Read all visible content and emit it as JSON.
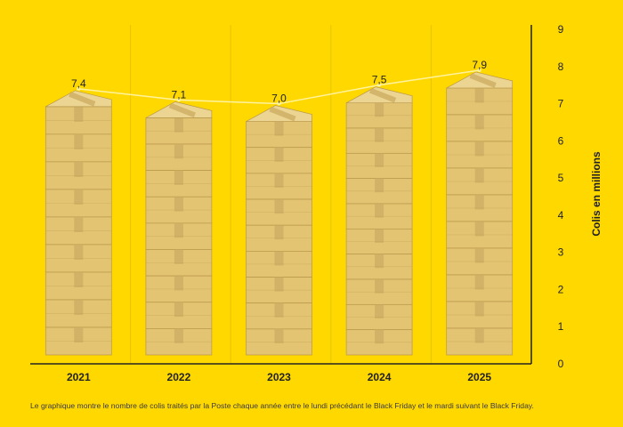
{
  "chart_data": {
    "type": "bar",
    "categories": [
      "2021",
      "2022",
      "2023",
      "2024",
      "2025"
    ],
    "values": [
      7.4,
      7.1,
      7.0,
      7.5,
      7.9
    ],
    "value_labels": [
      "7,4",
      "7,1",
      "7,0",
      "7,5",
      "7,9"
    ],
    "title": "",
    "xlabel": "",
    "ylabel": "Colis en millions",
    "ylim": [
      0,
      9
    ],
    "yticks": [
      0,
      1,
      2,
      3,
      4,
      5,
      6,
      7,
      8,
      9
    ],
    "y_axis_position": "right",
    "bar_style": "stacked-parcel-boxes",
    "trend_line": true,
    "grid": false
  },
  "caption": "Le graphique montre le nombre de colis traités par la Poste chaque année entre le lundi précédant le Black Friday et le mardi suivant le Black Friday.",
  "colors": {
    "background": "#FFD800",
    "box_front": "#E2C472",
    "box_side": "#D2B25E",
    "box_top": "#ECD592",
    "box_edge": "#B9974A",
    "tape": "#CDAE63",
    "trend_line": "#FFF3A0",
    "axis": "#222222",
    "separator": "#E8C400",
    "text": "#222222"
  }
}
